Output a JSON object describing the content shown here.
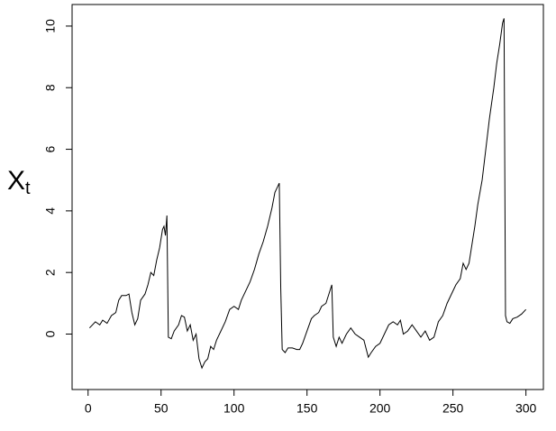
{
  "chart_data": {
    "type": "line",
    "y_label": "X",
    "y_label_sub": "t",
    "x": [
      1,
      5,
      8,
      10,
      13,
      16,
      19,
      21,
      23,
      26,
      28,
      30,
      32,
      34,
      36,
      39,
      41,
      43,
      45,
      47,
      49,
      51,
      52,
      53,
      54,
      55,
      57,
      59,
      62,
      64,
      66,
      68,
      70,
      72,
      74,
      76,
      78,
      80,
      82,
      84,
      86,
      88,
      91,
      94,
      97,
      100,
      103,
      105,
      108,
      111,
      114,
      117,
      120,
      123,
      126,
      128,
      130,
      131,
      132,
      133,
      135,
      137,
      140,
      143,
      145,
      147,
      150,
      153,
      155,
      158,
      160,
      163,
      165,
      167,
      168,
      170,
      172,
      174,
      177,
      180,
      183,
      186,
      189,
      192,
      194,
      197,
      200,
      203,
      206,
      209,
      212,
      214,
      216,
      219,
      222,
      225,
      228,
      231,
      234,
      237,
      240,
      243,
      246,
      249,
      252,
      255,
      257,
      259,
      261,
      263,
      265,
      267,
      270,
      272,
      275,
      278,
      280,
      282,
      284,
      285,
      286,
      287,
      289,
      291,
      294,
      297,
      300
    ],
    "values": [
      0.2,
      0.4,
      0.3,
      0.45,
      0.35,
      0.6,
      0.7,
      1.1,
      1.25,
      1.25,
      1.3,
      0.7,
      0.3,
      0.5,
      1.1,
      1.3,
      1.6,
      2.0,
      1.9,
      2.4,
      2.8,
      3.4,
      3.5,
      3.2,
      3.85,
      -0.1,
      -0.15,
      0.1,
      0.3,
      0.6,
      0.55,
      0.1,
      0.3,
      -0.2,
      0.0,
      -0.8,
      -1.1,
      -0.9,
      -0.8,
      -0.4,
      -0.5,
      -0.2,
      0.1,
      0.4,
      0.8,
      0.9,
      0.8,
      1.1,
      1.4,
      1.7,
      2.1,
      2.6,
      3.0,
      3.5,
      4.1,
      4.6,
      4.8,
      4.9,
      1.5,
      -0.5,
      -0.6,
      -0.45,
      -0.45,
      -0.5,
      -0.5,
      -0.3,
      0.1,
      0.5,
      0.6,
      0.7,
      0.9,
      1.0,
      1.3,
      1.6,
      -0.1,
      -0.4,
      -0.1,
      -0.3,
      0.0,
      0.2,
      0.0,
      -0.1,
      -0.2,
      -0.75,
      -0.6,
      -0.4,
      -0.3,
      0.0,
      0.3,
      0.4,
      0.3,
      0.45,
      0.0,
      0.1,
      0.3,
      0.1,
      -0.1,
      0.1,
      -0.2,
      -0.1,
      0.4,
      0.6,
      1.0,
      1.3,
      1.6,
      1.8,
      2.3,
      2.1,
      2.3,
      2.9,
      3.5,
      4.2,
      5.0,
      5.8,
      7.0,
      8.0,
      8.8,
      9.4,
      10.1,
      10.25,
      0.6,
      0.4,
      0.35,
      0.5,
      0.55,
      0.65,
      0.8
    ],
    "color": "#000000",
    "xlim": [
      -10.96,
      311.96
    ],
    "xticks": [
      0,
      50,
      100,
      150,
      200,
      250,
      300
    ],
    "ylim": [
      -1.8,
      10.7
    ],
    "yticks": [
      0,
      2,
      4,
      6,
      8,
      10
    ]
  }
}
